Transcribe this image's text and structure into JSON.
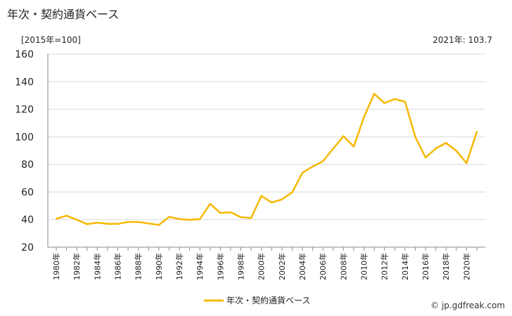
{
  "title": "年次・契約通貨ベース",
  "unit_label": "[2015年=100]",
  "latest_label": "2021年: 103.7",
  "source_label": "© jp.gdfreak.com",
  "colors": {
    "line": "#f5b800",
    "grid": "#d9d9d9",
    "axis": "#888888"
  },
  "chart_data": {
    "type": "line",
    "x": [
      1980,
      1981,
      1982,
      1983,
      1984,
      1985,
      1986,
      1987,
      1988,
      1989,
      1990,
      1991,
      1992,
      1993,
      1994,
      1995,
      1996,
      1997,
      1998,
      1999,
      2000,
      2001,
      2002,
      2003,
      2004,
      2005,
      2006,
      2007,
      2008,
      2009,
      2010,
      2011,
      2012,
      2013,
      2014,
      2015,
      2016,
      2017,
      2018,
      2019,
      2020,
      2021
    ],
    "x_tick_labels": [
      "1980年",
      "1982年",
      "1984年",
      "1986年",
      "1988年",
      "1990年",
      "1992年",
      "1994年",
      "1996年",
      "1998年",
      "2000年",
      "2002年",
      "2004年",
      "2006年",
      "2008年",
      "2010年",
      "2012年",
      "2014年",
      "2016年",
      "2018年",
      "2020年"
    ],
    "ylim": [
      20,
      160
    ],
    "y_ticks": [
      20,
      40,
      60,
      80,
      100,
      120,
      140,
      160
    ],
    "grid": true,
    "legend_position": "bottom",
    "series": [
      {
        "name": "年次・契約通貨ベース",
        "values": [
          40.6,
          42.8,
          39.9,
          36.7,
          37.8,
          36.9,
          36.9,
          38.3,
          38.3,
          37.2,
          36.1,
          42.0,
          40.4,
          39.8,
          40.4,
          51.4,
          44.8,
          45.3,
          41.7,
          41.2,
          57.2,
          52.4,
          54.6,
          59.8,
          73.9,
          78.5,
          82.3,
          91.5,
          100.5,
          92.9,
          114.5,
          131.2,
          124.4,
          127.4,
          125.5,
          100.0,
          84.9,
          91.6,
          95.6,
          89.9,
          80.9,
          103.7
        ]
      }
    ]
  }
}
